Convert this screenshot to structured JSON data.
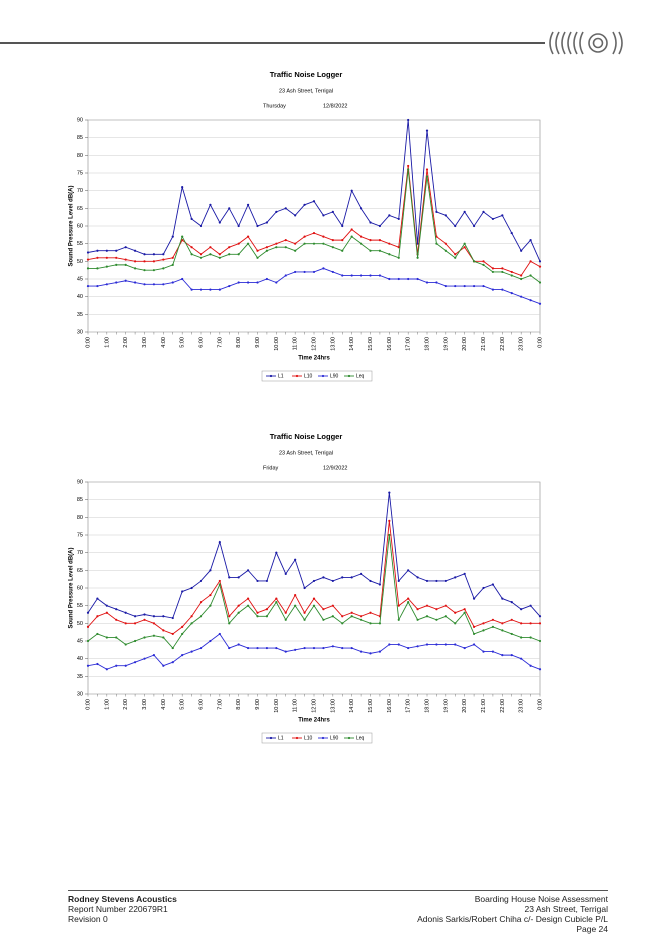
{
  "chart_data": [
    {
      "type": "line",
      "title": "Traffic Noise Logger",
      "subtitle": "23 Ash Street, Terrigal",
      "day": "Thursday",
      "date": "12/8/2022",
      "x_label": "Time 24hrs",
      "y_label": "Sound Pressure Level dB(A)",
      "categories": [
        "0:00",
        null,
        "1:00",
        null,
        "2:00",
        null,
        "3:00",
        null,
        "4:00",
        null,
        "5:00",
        null,
        "6:00",
        null,
        "7:00",
        null,
        "8:00",
        null,
        "9:00",
        null,
        "10:00",
        null,
        "11:00",
        null,
        "12:00",
        null,
        "13:00",
        null,
        "14:00",
        null,
        "15:00",
        null,
        "16:00",
        null,
        "17:00",
        null,
        "18:00",
        null,
        "19:00",
        null,
        "20:00",
        null,
        "21:00",
        null,
        "22:00",
        null,
        "23:00",
        null,
        "0:00"
      ],
      "ylim": [
        30,
        90
      ],
      "yticks": [
        30,
        35,
        40,
        45,
        50,
        55,
        60,
        65,
        70,
        75,
        80,
        85,
        90
      ],
      "grid": true,
      "series": [
        {
          "name": "L1",
          "color": "#1a1aa6",
          "values": [
            52.5,
            53,
            53,
            53,
            54,
            53,
            52,
            52,
            52,
            57,
            71,
            62,
            60,
            66,
            61,
            65,
            60,
            66,
            60,
            61,
            64,
            65,
            63,
            66,
            67,
            63,
            64,
            60,
            70,
            65,
            61,
            60,
            63,
            62,
            90,
            55,
            87,
            64,
            63,
            60,
            64,
            60,
            64,
            62,
            63,
            58,
            53,
            56,
            50
          ]
        },
        {
          "name": "L10",
          "color": "#e01010",
          "values": [
            50.5,
            51,
            51,
            51,
            50.5,
            50,
            50,
            50,
            50.5,
            51,
            56,
            54,
            52,
            54,
            52,
            54,
            55,
            57,
            53,
            54,
            55,
            56,
            55,
            57,
            58,
            57,
            56,
            56,
            59,
            57,
            56,
            56,
            55,
            54,
            77,
            52,
            76,
            57,
            55,
            52,
            54,
            50,
            50,
            48,
            48,
            47,
            46,
            50,
            48.5
          ]
        },
        {
          "name": "L90",
          "color": "#2b2bd6",
          "values": [
            43,
            43,
            43.5,
            44,
            44.5,
            44,
            43.5,
            43.5,
            43.5,
            44,
            45,
            42,
            42,
            42,
            42,
            43,
            44,
            44,
            44,
            45,
            44,
            46,
            47,
            47,
            47,
            48,
            47,
            46,
            46,
            46,
            46,
            46,
            45,
            45,
            45,
            45,
            44,
            44,
            43,
            43,
            43,
            43,
            43,
            42,
            42,
            41,
            40,
            39,
            38
          ]
        },
        {
          "name": "Leq",
          "color": "#2e8b2e",
          "values": [
            48,
            48,
            48.5,
            49,
            49,
            48,
            47.5,
            47.5,
            48,
            49,
            57,
            52,
            51,
            52,
            51,
            52,
            52,
            55,
            51,
            53,
            54,
            54,
            53,
            55,
            55,
            55,
            54,
            53,
            57,
            55,
            53,
            53,
            52,
            51,
            76,
            51,
            74,
            55,
            53,
            51,
            55,
            50,
            49,
            47,
            47,
            46,
            45,
            46,
            44
          ]
        }
      ]
    },
    {
      "type": "line",
      "title": "Traffic Noise Logger",
      "subtitle": "23 Ash Street, Terrigal",
      "day": "Friday",
      "date": "12/9/2022",
      "x_label": "Time 24hrs",
      "y_label": "Sound Pressure Level dB(A)",
      "categories": [
        "0:00",
        null,
        "1:00",
        null,
        "2:00",
        null,
        "3:00",
        null,
        "4:00",
        null,
        "5:00",
        null,
        "6:00",
        null,
        "7:00",
        null,
        "8:00",
        null,
        "9:00",
        null,
        "10:00",
        null,
        "11:00",
        null,
        "12:00",
        null,
        "13:00",
        null,
        "14:00",
        null,
        "15:00",
        null,
        "16:00",
        null,
        "17:00",
        null,
        "18:00",
        null,
        "19:00",
        null,
        "20:00",
        null,
        "21:00",
        null,
        "22:00",
        null,
        "23:00",
        null,
        "0:00"
      ],
      "ylim": [
        30,
        90
      ],
      "yticks": [
        30,
        35,
        40,
        45,
        50,
        55,
        60,
        65,
        70,
        75,
        80,
        85,
        90
      ],
      "grid": true,
      "series": [
        {
          "name": "L1",
          "color": "#1a1aa6",
          "values": [
            53,
            57,
            55,
            54,
            53,
            52,
            52.5,
            52,
            52,
            51.5,
            59,
            60,
            62,
            65,
            73,
            63,
            63,
            65,
            62,
            62,
            70,
            64,
            68,
            60,
            62,
            63,
            62,
            63,
            63,
            64,
            62,
            61,
            87,
            62,
            65,
            63,
            62,
            62,
            62,
            63,
            64,
            57,
            60,
            61,
            57,
            56,
            54,
            55,
            52
          ]
        },
        {
          "name": "L10",
          "color": "#e01010",
          "values": [
            49,
            52,
            53,
            51,
            50,
            50,
            51,
            50,
            48,
            47,
            49,
            52,
            56,
            58,
            62,
            52,
            55,
            57,
            53,
            54,
            57,
            53,
            58,
            53,
            57,
            54,
            55,
            52,
            53,
            52,
            53,
            52,
            79,
            55,
            57,
            54,
            55,
            54,
            55,
            53,
            54,
            49,
            50,
            51,
            50,
            51,
            50,
            50,
            50
          ]
        },
        {
          "name": "L90",
          "color": "#2b2bd6",
          "values": [
            38,
            38.5,
            37,
            38,
            38,
            39,
            40,
            41,
            38,
            39,
            41,
            42,
            43,
            45,
            47,
            43,
            44,
            43,
            43,
            43,
            43,
            42,
            42.5,
            43,
            43,
            43,
            43.5,
            43,
            43,
            42,
            41.5,
            42,
            44,
            44,
            43,
            43.5,
            44,
            44,
            44,
            44,
            43,
            44,
            42,
            42,
            41,
            41,
            40,
            38,
            37
          ]
        },
        {
          "name": "Leq",
          "color": "#2e8b2e",
          "values": [
            45,
            47,
            46,
            46,
            44,
            45,
            46,
            46.5,
            46,
            43,
            47,
            50,
            52,
            55,
            61,
            50,
            53,
            55,
            52,
            52,
            56,
            51,
            55,
            51,
            55,
            51,
            52,
            50,
            52,
            51,
            50,
            50,
            75,
            51,
            56,
            51,
            52,
            51,
            52,
            50,
            53,
            47,
            48,
            49,
            48,
            47,
            46,
            46,
            45
          ]
        }
      ]
    }
  ],
  "footer": {
    "company": "Rodney Stevens Acoustics",
    "report": "Report Number 220679R1",
    "revision": "Revision 0",
    "project": "Boarding House Noise Assessment",
    "address": "23 Ash Street, Terrigal",
    "client": "Adonis Sarkis/Robert Chiha c/- Design Cubicle P/L",
    "page": "Page 24"
  }
}
